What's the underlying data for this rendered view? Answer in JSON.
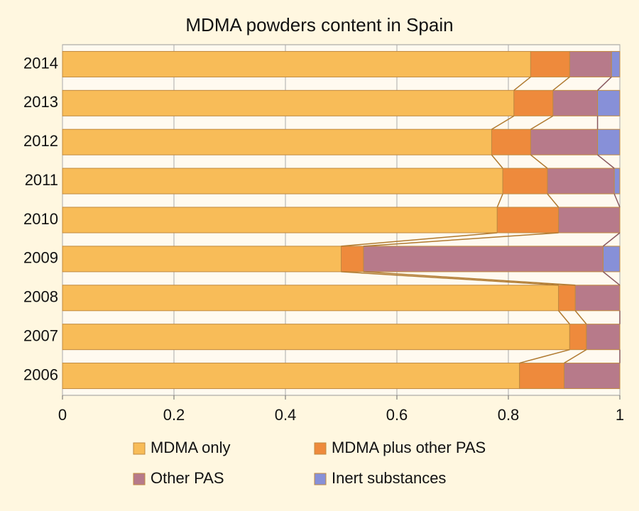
{
  "chart_data": {
    "type": "stacked_bar_horizontal",
    "title": "MDMA powders content in Spain",
    "categories": [
      "2014",
      "2013",
      "2012",
      "2011",
      "2010",
      "2009",
      "2008",
      "2007",
      "2006"
    ],
    "series": [
      {
        "name": "MDMA only",
        "color": "#f8bc58",
        "values": [
          0.84,
          0.81,
          0.77,
          0.79,
          0.78,
          0.5,
          0.89,
          0.91,
          0.82
        ]
      },
      {
        "name": "MDMA plus other PAS",
        "color": "#ee8a3c",
        "values": [
          0.07,
          0.07,
          0.07,
          0.08,
          0.11,
          0.04,
          0.03,
          0.03,
          0.08
        ]
      },
      {
        "name": "Other PAS",
        "color": "#b77a8a",
        "values": [
          0.075,
          0.08,
          0.12,
          0.12,
          0.11,
          0.43,
          0.08,
          0.06,
          0.1
        ]
      },
      {
        "name": "Inert substances",
        "color": "#8790d8",
        "values": [
          0.015,
          0.04,
          0.04,
          0.01,
          0,
          0.03,
          0,
          0,
          0
        ]
      }
    ],
    "xlim": [
      0,
      1
    ],
    "xticks": [
      0,
      0.2,
      0.4,
      0.6,
      0.8,
      1
    ],
    "grid": true
  }
}
